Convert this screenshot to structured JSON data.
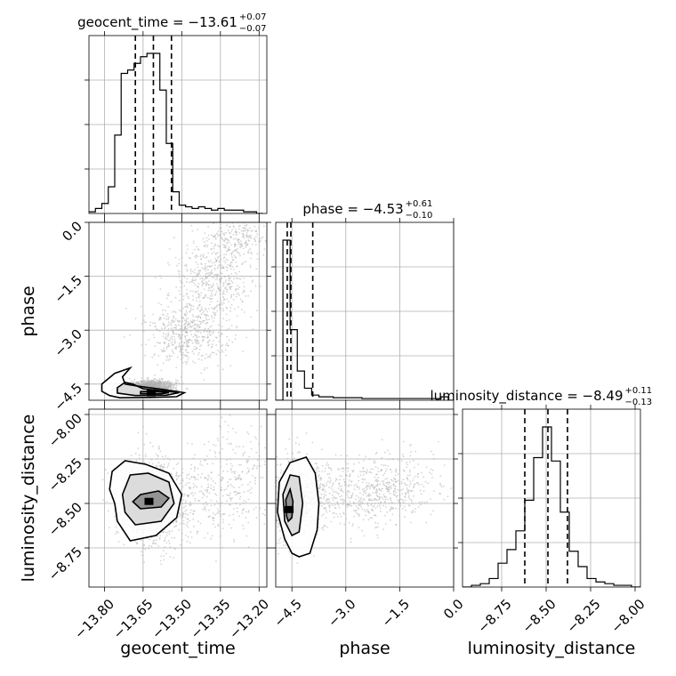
{
  "chart_data": {
    "type": "corner",
    "parameters": [
      "geocent_time",
      "phase",
      "luminosity_distance"
    ],
    "axis_labels": {
      "x": [
        "geocent_time",
        "phase",
        "luminosity_distance"
      ],
      "y": [
        "phase",
        "luminosity_distance"
      ]
    },
    "ranges": {
      "geocent_time": [
        -13.86,
        -13.17
      ],
      "phase": [
        -4.95,
        0.0
      ],
      "luminosity_distance": [
        -8.97,
        -7.97
      ]
    },
    "ticks": {
      "geocent_time": {
        "values": [
          -13.8,
          -13.65,
          -13.5,
          -13.35,
          -13.2
        ],
        "labels": [
          "−13.80",
          "−13.65",
          "−13.50",
          "−13.35",
          "−13.20"
        ]
      },
      "phase": {
        "values": [
          -4.5,
          -3.0,
          -1.5,
          0.0
        ],
        "labels": [
          "−4.5",
          "−3.0",
          "−1.5",
          "0.0"
        ]
      },
      "luminosity_distance": {
        "values": [
          -8.75,
          -8.5,
          -8.25,
          -8.0
        ],
        "labels": [
          "−8.75",
          "−8.50",
          "−8.25",
          "−8.00"
        ]
      }
    },
    "titles": [
      {
        "param": "geocent_time",
        "main": "geocent_time = −13.61",
        "plus": "+0.07",
        "minus": "−0.07"
      },
      {
        "param": "phase",
        "main": "phase = −4.53",
        "plus": "+0.61",
        "minus": "−0.10"
      },
      {
        "param": "luminosity_distance",
        "main": "luminosity_distance = −8.49",
        "plus": "+0.11",
        "minus": "−0.13"
      }
    ],
    "histograms": {
      "geocent_time": {
        "edges": [
          -13.86,
          -13.835,
          -13.81,
          -13.785,
          -13.76,
          -13.735,
          -13.71,
          -13.685,
          -13.66,
          -13.635,
          -13.61,
          -13.585,
          -13.56,
          -13.535,
          -13.51,
          -13.485,
          -13.46,
          -13.435,
          -13.41,
          -13.385,
          -13.36,
          -13.335,
          -13.31,
          -13.285,
          -13.26,
          -13.235,
          -13.21,
          -13.185
        ],
        "counts": [
          0.01,
          0.03,
          0.06,
          0.16,
          0.47,
          0.84,
          0.86,
          0.9,
          0.94,
          0.96,
          0.96,
          0.74,
          0.42,
          0.13,
          0.05,
          0.04,
          0.03,
          0.04,
          0.03,
          0.02,
          0.03,
          0.02,
          0.02,
          0.02,
          0.01,
          0.01,
          0.0
        ]
      },
      "phase": {
        "edges": [
          -4.95,
          -4.75,
          -4.55,
          -4.35,
          -4.15,
          -3.95,
          -3.75,
          -3.55,
          -3.35,
          -3.15,
          -2.95,
          -2.75,
          -2.55,
          -2.35,
          -2.15,
          -1.95,
          -1.75,
          -1.55,
          -1.35,
          -1.15,
          -0.95,
          -0.75,
          -0.55,
          -0.35,
          -0.15,
          0.05
        ],
        "counts": [
          0.0,
          0.93,
          0.41,
          0.17,
          0.07,
          0.03,
          0.02,
          0.02,
          0.015,
          0.015,
          0.015,
          0.015,
          0.01,
          0.01,
          0.01,
          0.01,
          0.01,
          0.01,
          0.01,
          0.01,
          0.01,
          0.01,
          0.01,
          0.02,
          0.0
        ]
      },
      "luminosity_distance": {
        "edges": [
          -8.97,
          -8.92,
          -8.87,
          -8.82,
          -8.77,
          -8.72,
          -8.67,
          -8.62,
          -8.57,
          -8.52,
          -8.47,
          -8.42,
          -8.37,
          -8.32,
          -8.27,
          -8.22,
          -8.17,
          -8.12,
          -8.07,
          -8.02,
          -7.97
        ],
        "counts": [
          0.0,
          0.01,
          0.02,
          0.05,
          0.14,
          0.22,
          0.33,
          0.51,
          0.76,
          0.94,
          0.74,
          0.44,
          0.21,
          0.12,
          0.05,
          0.03,
          0.02,
          0.01,
          0.01,
          0.0
        ]
      }
    },
    "quantiles": {
      "geocent_time": [
        -13.68,
        -13.61,
        -13.54
      ],
      "phase": [
        -4.63,
        -4.53,
        -3.92
      ],
      "luminosity_distance": [
        -8.62,
        -8.49,
        -8.38
      ]
    },
    "scatter_clouds": [
      {
        "x_param": "geocent_time",
        "y_param": "phase",
        "points": [
          [
            -13.62,
            -4.55,
            800,
            0.045,
            0.08
          ],
          [
            -13.48,
            -3.1,
            500,
            0.08,
            0.45
          ],
          [
            -13.38,
            -1.6,
            450,
            0.07,
            0.55
          ],
          [
            -13.28,
            -0.4,
            250,
            0.06,
            0.35
          ]
        ]
      },
      {
        "x_param": "geocent_time",
        "y_param": "luminosity_distance",
        "points": [
          [
            -13.62,
            -8.49,
            1300,
            0.06,
            0.12
          ],
          [
            -13.4,
            -8.45,
            300,
            0.12,
            0.12
          ],
          [
            -13.3,
            -8.3,
            120,
            0.08,
            0.15
          ]
        ]
      },
      {
        "x_param": "phase",
        "y_param": "luminosity_distance",
        "points": [
          [
            -4.45,
            -8.49,
            900,
            0.35,
            0.11
          ],
          [
            -3.0,
            -8.45,
            500,
            0.9,
            0.1
          ],
          [
            -1.5,
            -8.4,
            250,
            0.6,
            0.1
          ]
        ]
      }
    ],
    "contours": [
      {
        "x_param": "geocent_time",
        "y_param": "phase",
        "levels": [
          [
            [
              -13.78,
              -4.82
            ],
            [
              -13.74,
              -4.88
            ],
            [
              -13.62,
              -4.87
            ],
            [
              -13.52,
              -4.85
            ],
            [
              -13.49,
              -4.74
            ],
            [
              -13.56,
              -4.66
            ],
            [
              -13.66,
              -4.57
            ],
            [
              -13.72,
              -4.5
            ],
            [
              -13.73,
              -4.3
            ],
            [
              -13.7,
              -4.05
            ],
            [
              -13.76,
              -4.2
            ],
            [
              -13.81,
              -4.5
            ],
            [
              -13.81,
              -4.7
            ],
            [
              -13.78,
              -4.82
            ]
          ],
          [
            [
              -13.75,
              -4.75
            ],
            [
              -13.68,
              -4.82
            ],
            [
              -13.56,
              -4.81
            ],
            [
              -13.51,
              -4.74
            ],
            [
              -13.57,
              -4.69
            ],
            [
              -13.65,
              -4.63
            ],
            [
              -13.69,
              -4.5
            ],
            [
              -13.72,
              -4.45
            ],
            [
              -13.75,
              -4.6
            ],
            [
              -13.75,
              -4.75
            ]
          ],
          [
            [
              -13.66,
              -4.77
            ],
            [
              -13.58,
              -4.77
            ],
            [
              -13.55,
              -4.74
            ],
            [
              -13.6,
              -4.7
            ],
            [
              -13.66,
              -4.71
            ],
            [
              -13.66,
              -4.77
            ]
          ]
        ]
      },
      {
        "x_param": "geocent_time",
        "y_param": "luminosity_distance",
        "levels": [
          [
            [
              -13.7,
              -8.71
            ],
            [
              -13.6,
              -8.68
            ],
            [
              -13.52,
              -8.58
            ],
            [
              -13.5,
              -8.45
            ],
            [
              -13.55,
              -8.33
            ],
            [
              -13.64,
              -8.28
            ],
            [
              -13.72,
              -8.26
            ],
            [
              -13.77,
              -8.32
            ],
            [
              -13.78,
              -8.42
            ],
            [
              -13.76,
              -8.5
            ],
            [
              -13.75,
              -8.6
            ],
            [
              -13.7,
              -8.71
            ]
          ],
          [
            [
              -13.68,
              -8.62
            ],
            [
              -13.58,
              -8.6
            ],
            [
              -13.53,
              -8.5
            ],
            [
              -13.55,
              -8.38
            ],
            [
              -13.63,
              -8.33
            ],
            [
              -13.7,
              -8.34
            ],
            [
              -13.73,
              -8.45
            ],
            [
              -13.72,
              -8.55
            ],
            [
              -13.68,
              -8.62
            ]
          ],
          [
            [
              -13.66,
              -8.53
            ],
            [
              -13.58,
              -8.52
            ],
            [
              -13.55,
              -8.47
            ],
            [
              -13.59,
              -8.43
            ],
            [
              -13.66,
              -8.45
            ],
            [
              -13.69,
              -8.49
            ],
            [
              -13.66,
              -8.53
            ]
          ]
        ]
      },
      {
        "x_param": "phase",
        "y_param": "luminosity_distance",
        "levels": [
          [
            [
              -4.3,
              -8.8
            ],
            [
              -4.0,
              -8.78
            ],
            [
              -3.8,
              -8.65
            ],
            [
              -3.75,
              -8.5
            ],
            [
              -3.85,
              -8.33
            ],
            [
              -4.1,
              -8.24
            ],
            [
              -4.55,
              -8.27
            ],
            [
              -4.85,
              -8.38
            ],
            [
              -4.9,
              -8.55
            ],
            [
              -4.7,
              -8.7
            ],
            [
              -4.5,
              -8.78
            ],
            [
              -4.3,
              -8.8
            ]
          ],
          [
            [
              -4.5,
              -8.68
            ],
            [
              -4.3,
              -8.66
            ],
            [
              -4.2,
              -8.5
            ],
            [
              -4.3,
              -8.35
            ],
            [
              -4.55,
              -8.34
            ],
            [
              -4.75,
              -8.45
            ],
            [
              -4.7,
              -8.6
            ],
            [
              -4.5,
              -8.68
            ]
          ],
          [
            [
              -4.6,
              -8.6
            ],
            [
              -4.5,
              -8.58
            ],
            [
              -4.47,
              -8.49
            ],
            [
              -4.55,
              -8.42
            ],
            [
              -4.67,
              -8.48
            ],
            [
              -4.65,
              -8.57
            ],
            [
              -4.6,
              -8.6
            ]
          ]
        ]
      }
    ],
    "colors": {
      "hist": "#000000",
      "contour": "#000000",
      "points": "#b0b0b0",
      "grid": "#b0b0b0"
    }
  }
}
